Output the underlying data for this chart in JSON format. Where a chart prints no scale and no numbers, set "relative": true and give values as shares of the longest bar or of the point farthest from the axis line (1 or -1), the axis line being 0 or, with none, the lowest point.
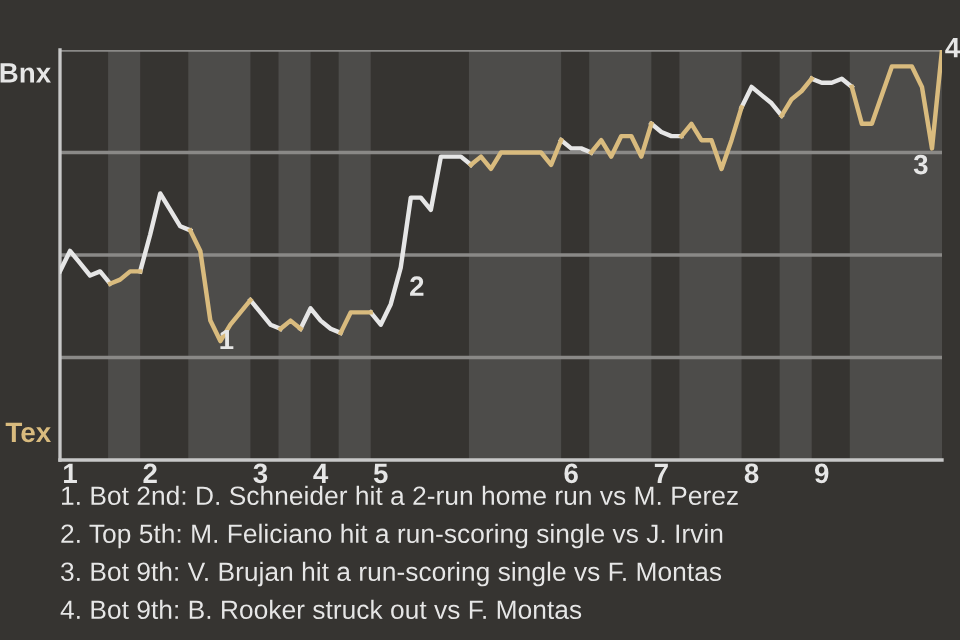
{
  "chart_data": {
    "type": "line",
    "relative": true,
    "categories": [
      null,
      "1",
      null,
      null,
      null,
      null,
      null,
      null,
      null,
      "2",
      null,
      null,
      null,
      null,
      null,
      null,
      null,
      null,
      null,
      null,
      "3",
      null,
      null,
      null,
      null,
      null,
      "4",
      null,
      null,
      null,
      null,
      null,
      "5",
      null,
      null,
      null,
      null,
      null,
      null,
      null,
      null,
      null,
      null,
      null,
      null,
      null,
      null,
      null,
      null,
      null,
      null,
      "6",
      null,
      null,
      null,
      null,
      null,
      null,
      null,
      null,
      "7",
      null,
      null,
      null,
      null,
      null,
      null,
      null,
      null,
      "8",
      null,
      null,
      null,
      null,
      null,
      null,
      "9",
      null,
      null,
      null,
      null,
      null,
      null,
      null,
      null,
      null,
      null,
      null,
      null
    ],
    "series": [
      {
        "color": "#e6e6e6",
        "values": [
          0.46,
          0.51,
          0.48,
          0.45,
          0.46,
          0.43,
          null,
          null,
          0.46,
          0.55,
          0.65,
          0.61,
          0.57,
          0.56,
          null,
          null,
          null,
          null,
          null,
          0.39,
          0.36,
          0.33,
          0.32,
          null,
          0.32,
          0.37,
          0.34,
          0.32,
          0.31,
          null,
          null,
          0.36,
          0.33,
          0.38,
          0.47,
          0.64,
          0.64,
          0.61,
          0.74,
          0.74,
          0.74,
          0.72,
          null,
          null,
          null,
          null,
          null,
          null,
          null,
          null,
          0.78,
          0.76,
          0.76,
          0.75,
          null,
          null,
          null,
          null,
          null,
          0.82,
          0.8,
          0.79,
          0.79,
          null,
          null,
          null,
          null,
          null,
          0.86,
          0.91,
          0.89,
          0.87,
          0.84,
          null,
          null,
          0.93,
          0.92,
          0.92,
          0.93,
          0.91,
          null,
          null,
          null,
          null,
          null,
          null,
          null,
          null,
          null
        ],
        "name": null
      },
      {
        "color": "#d9bb7e",
        "values": [
          null,
          null,
          null,
          null,
          null,
          0.43,
          0.44,
          0.46,
          0.46,
          null,
          null,
          null,
          null,
          0.56,
          0.51,
          0.34,
          0.29,
          0.33,
          0.36,
          0.39,
          null,
          null,
          0.32,
          0.34,
          0.32,
          null,
          null,
          null,
          0.31,
          0.36,
          0.36,
          0.36,
          null,
          null,
          null,
          null,
          null,
          null,
          null,
          null,
          null,
          0.72,
          0.74,
          0.71,
          0.75,
          0.75,
          0.75,
          0.75,
          0.75,
          0.72,
          0.78,
          null,
          null,
          0.75,
          0.78,
          0.74,
          0.79,
          0.79,
          0.74,
          0.82,
          null,
          null,
          0.79,
          0.82,
          0.78,
          0.78,
          0.71,
          0.78,
          0.86,
          null,
          null,
          null,
          0.84,
          0.88,
          0.9,
          0.93,
          null,
          null,
          null,
          0.91,
          0.82,
          0.82,
          0.89,
          0.96,
          0.96,
          0.96,
          0.91,
          0.76,
          1
        ],
        "name": null
      }
    ],
    "line_style": "solid",
    "ref_lines": [
      {
        "axis": "y",
        "value": 1,
        "color": "#8a8987"
      },
      {
        "axis": "y",
        "value": 0.75,
        "color": "#8a8987"
      },
      {
        "axis": "y",
        "value": 0.5,
        "color": "#8a8987"
      },
      {
        "axis": "y",
        "value": 0.25,
        "color": "#8a8987"
      }
    ],
    "annotations": [
      "Bnx",
      "Tex",
      "1",
      "2",
      "3",
      "4",
      "1. Bot 2nd: D. Schneider hit a 2-run home run vs M. Perez",
      "2. Top 5th: M. Feliciano hit a run-scoring single vs J. Irvin",
      "3. Bot 9th: V. Brujan hit a run-scoring single vs F. Montas",
      "4. Bot 9th: B. Rooker struck out vs F. Montas"
    ]
  }
}
